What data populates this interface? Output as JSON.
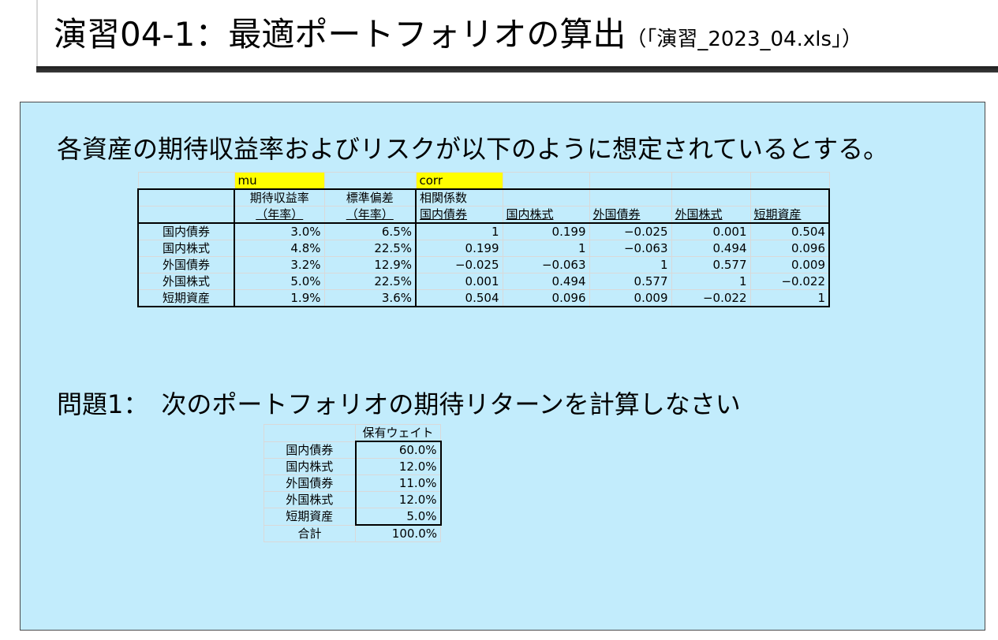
{
  "title": {
    "main": "演習04-1：最適ポートフォリオの算出",
    "sub": "（「演習_2023_04.xls」）"
  },
  "intro_text": "各資産の期待収益率およびリスクが以下のように想定されているとする。",
  "asset_table": {
    "name_tags": {
      "mu": "mu",
      "corr": "corr"
    },
    "headers": {
      "exp_return_1": "期待収益率",
      "exp_return_2": "（年率）",
      "stdev_1": "標準偏差",
      "stdev_2": "（年率）",
      "corr_1": "相関係数",
      "corr_cols": [
        "国内債券",
        "国内株式",
        "外国債券",
        "外国株式",
        "短期資産"
      ]
    },
    "rows": [
      {
        "asset": "国内債券",
        "mu": "3.0%",
        "sd": "6.5%",
        "corr": [
          "1",
          "0.199",
          "−0.025",
          "0.001",
          "0.504"
        ]
      },
      {
        "asset": "国内株式",
        "mu": "4.8%",
        "sd": "22.5%",
        "corr": [
          "0.199",
          "1",
          "−0.063",
          "0.494",
          "0.096"
        ]
      },
      {
        "asset": "外国債券",
        "mu": "3.2%",
        "sd": "12.9%",
        "corr": [
          "−0.025",
          "−0.063",
          "1",
          "0.577",
          "0.009"
        ]
      },
      {
        "asset": "外国株式",
        "mu": "5.0%",
        "sd": "22.5%",
        "corr": [
          "0.001",
          "0.494",
          "0.577",
          "1",
          "−0.022"
        ]
      },
      {
        "asset": "短期資産",
        "mu": "1.9%",
        "sd": "3.6%",
        "corr": [
          "0.504",
          "0.096",
          "0.009",
          "−0.022",
          "1"
        ]
      }
    ]
  },
  "question_text": "問題1：　次のポートフォリオの期待リターンを計算しなさい",
  "weight_table": {
    "header": "保有ウェイト",
    "rows": [
      {
        "asset": "国内債券",
        "weight": "60.0%"
      },
      {
        "asset": "国内株式",
        "weight": "12.0%"
      },
      {
        "asset": "外国債券",
        "weight": "11.0%"
      },
      {
        "asset": "外国株式",
        "weight": "12.0%"
      },
      {
        "asset": "短期資産",
        "weight": "5.0%"
      }
    ],
    "total_label": "合計",
    "total_value": "100.0%"
  },
  "colors": {
    "panel_bg": "#c2ecfc",
    "name_tag_bg": "#ffff00",
    "title_rule": "#1e1e1e"
  }
}
